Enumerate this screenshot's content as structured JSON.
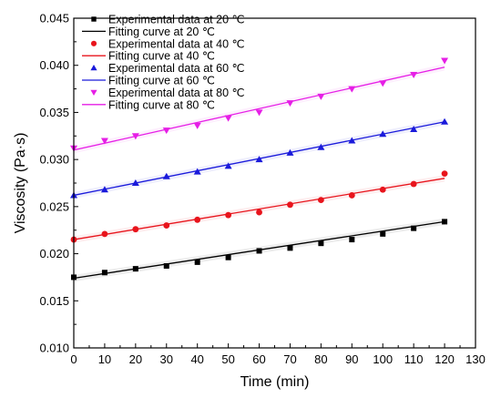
{
  "chart_data": {
    "type": "scatter",
    "xlabel": "Time (min)",
    "ylabel": "Viscosity (Pa·s)",
    "xlim": [
      0,
      130
    ],
    "ylim": [
      0.01,
      0.045
    ],
    "xticks": [
      0,
      10,
      20,
      30,
      40,
      50,
      60,
      70,
      80,
      90,
      100,
      110,
      120,
      130
    ],
    "yticks": [
      0.01,
      0.015,
      0.02,
      0.025,
      0.03,
      0.035,
      0.04,
      0.045
    ],
    "xtick_labels": [
      "0",
      "10",
      "20",
      "30",
      "40",
      "50",
      "60",
      "70",
      "80",
      "90",
      "100",
      "110",
      "120",
      "130"
    ],
    "ytick_labels": [
      "0.010",
      "0.015",
      "0.020",
      "0.025",
      "0.030",
      "0.035",
      "0.040",
      "0.045"
    ],
    "grid": false,
    "legend_position": "top-left",
    "x": [
      0,
      10,
      20,
      30,
      40,
      50,
      60,
      70,
      80,
      90,
      100,
      110,
      120
    ],
    "series": [
      {
        "name": "Experimental data at 20 ℃",
        "fit_name": "Fitting curve at 20 ℃",
        "color": "#000000",
        "marker": "square",
        "values": [
          0.0175,
          0.018,
          0.0184,
          0.0187,
          0.0191,
          0.0196,
          0.0203,
          0.0206,
          0.0211,
          0.0215,
          0.0221,
          0.0227,
          0.0234
        ],
        "fit": [
          0.0174,
          0.0234
        ]
      },
      {
        "name": "Experimental data at 40 ℃",
        "fit_name": "Fitting curve at 40 ℃",
        "color": "#e8141c",
        "marker": "circle",
        "values": [
          0.0215,
          0.0221,
          0.0226,
          0.023,
          0.0236,
          0.0241,
          0.0244,
          0.0252,
          0.0257,
          0.0262,
          0.0268,
          0.0274,
          0.0285
        ],
        "fit": [
          0.0215,
          0.028
        ]
      },
      {
        "name": "Experimental data at 60 ℃",
        "fit_name": "Fitting curve at 60 ℃",
        "color": "#1a1adb",
        "marker": "triangle-up",
        "values": [
          0.0262,
          0.0268,
          0.0275,
          0.0282,
          0.0287,
          0.0293,
          0.03,
          0.0307,
          0.0313,
          0.032,
          0.0327,
          0.0332,
          0.034
        ],
        "fit": [
          0.0262,
          0.034
        ]
      },
      {
        "name": "Experimental data at 80 ℃",
        "fit_name": "Fitting curve at 80 ℃",
        "color": "#e61ee6",
        "marker": "triangle-down",
        "values": [
          0.0312,
          0.032,
          0.0325,
          0.0331,
          0.0336,
          0.0344,
          0.035,
          0.036,
          0.0367,
          0.0375,
          0.0381,
          0.039,
          0.0405
        ],
        "fit": [
          0.031,
          0.0398
        ]
      }
    ]
  }
}
